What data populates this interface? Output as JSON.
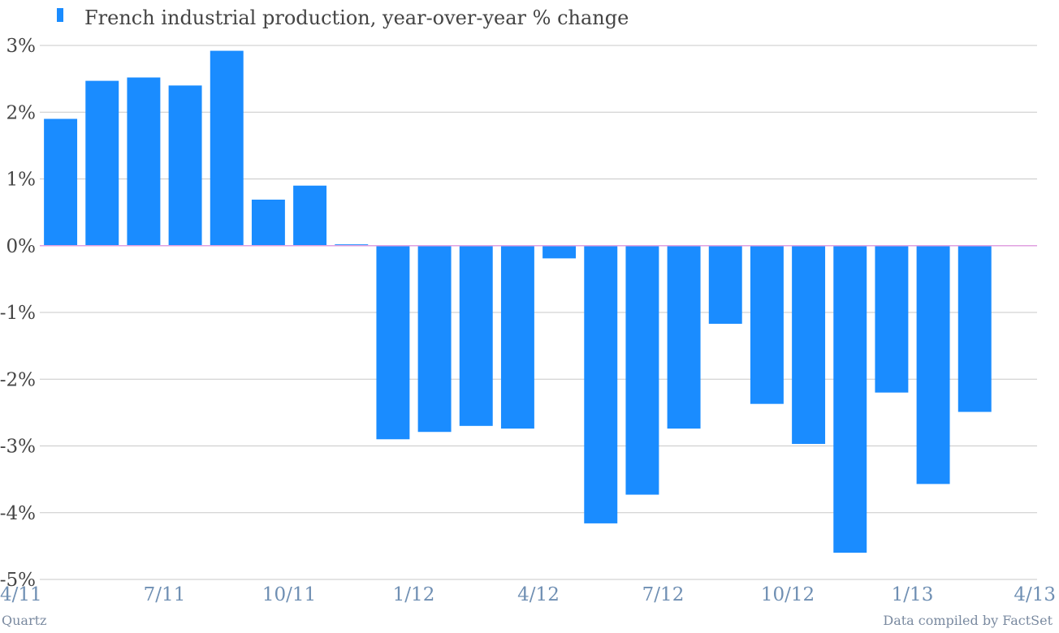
{
  "chart_data": {
    "type": "bar",
    "title": "",
    "xlabel": "",
    "ylabel": "",
    "ylim": [
      -5,
      3
    ],
    "yticks": [
      "3%",
      "2%",
      "1%",
      "0%",
      "-1%",
      "-2%",
      "-3%",
      "-4%",
      "-5%"
    ],
    "ytick_values": [
      3,
      2,
      1,
      0,
      -1,
      -2,
      -3,
      -4,
      -5
    ],
    "xtick_labels": [
      "4/11",
      "7/11",
      "10/11",
      "1/12",
      "4/12",
      "7/12",
      "10/12",
      "1/13",
      "4/13"
    ],
    "categories": [
      "4/11",
      "5/11",
      "6/11",
      "7/11",
      "8/11",
      "9/11",
      "10/11",
      "11/11",
      "12/11",
      "1/12",
      "2/12",
      "3/12",
      "4/12",
      "5/12",
      "6/12",
      "7/12",
      "8/12",
      "9/12",
      "10/12",
      "11/12",
      "12/12",
      "1/13",
      "2/13",
      "3/13"
    ],
    "series": [
      {
        "name": "French industrial production, year-over-year % change",
        "color": "#1a8cff",
        "values": [
          1.9,
          2.47,
          2.52,
          2.4,
          2.92,
          0.69,
          0.9,
          0.02,
          -2.9,
          -2.79,
          -2.7,
          -2.74,
          -0.19,
          -4.16,
          -3.73,
          -2.74,
          -1.17,
          -2.37,
          -2.97,
          -4.6,
          -2.2,
          -3.57,
          -2.49,
          0
        ]
      }
    ],
    "grid": true,
    "legend": "top-left",
    "zero_line_color": "#e0a0e0"
  },
  "footer": {
    "left": "Quartz",
    "right": "Data compiled by FactSet"
  }
}
